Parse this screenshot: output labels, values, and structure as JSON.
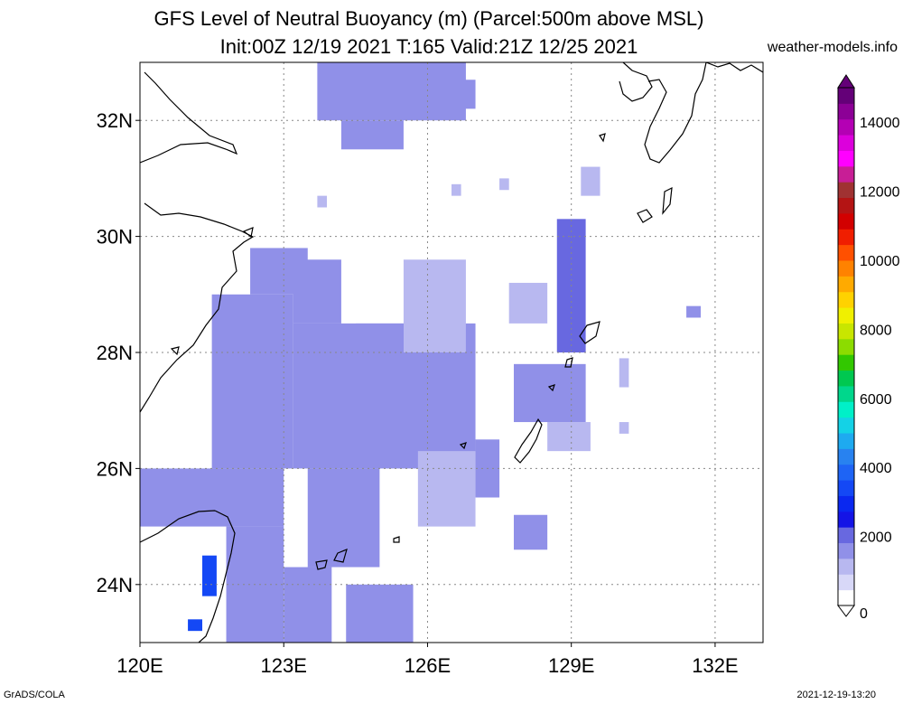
{
  "title_line1": "GFS Level of Neutral Buoyancy (m) (Parcel:500m above MSL)",
  "title_line2": "Init:00Z 12/19 2021 T:165 Valid:21Z 12/25 2021",
  "site": "weather-models.info",
  "footer_left": "GrADS/COLA",
  "footer_right": "2021-12-19-13:20",
  "map": {
    "lon_range": [
      120,
      133
    ],
    "lat_range": [
      23,
      33
    ],
    "lon_ticks": [
      {
        "value": 120,
        "label": "120E"
      },
      {
        "value": 123,
        "label": "123E"
      },
      {
        "value": 126,
        "label": "126E"
      },
      {
        "value": 129,
        "label": "129E"
      },
      {
        "value": 132,
        "label": "132E"
      }
    ],
    "lat_ticks": [
      {
        "value": 24,
        "label": "24N"
      },
      {
        "value": 26,
        "label": "26N"
      },
      {
        "value": 28,
        "label": "28N"
      },
      {
        "value": 30,
        "label": "30N"
      },
      {
        "value": 32,
        "label": "32N"
      }
    ],
    "grid_lines": true
  },
  "colorbar": {
    "min": 0,
    "max": 15000,
    "labels": [
      "0",
      "2000",
      "4000",
      "6000",
      "8000",
      "10000",
      "12000",
      "14000"
    ],
    "colors": [
      "#ffffff",
      "#d8d8f8",
      "#b8b8f0",
      "#9090e8",
      "#6868e0",
      "#1414e6",
      "#0a28f0",
      "#1448f5",
      "#1e64f5",
      "#2882f0",
      "#1eaaf0",
      "#14d2e6",
      "#00f0c8",
      "#00d78c",
      "#00c850",
      "#32c800",
      "#8cdc00",
      "#c8e600",
      "#f0f000",
      "#ffd200",
      "#ffaa00",
      "#ff8200",
      "#ff5000",
      "#f01e00",
      "#d20000",
      "#b41414",
      "#a03232",
      "#c81e96",
      "#ff00ff",
      "#dc00dc",
      "#b400b4",
      "#8c0096",
      "#640078"
    ]
  },
  "field": {
    "description_units": "m",
    "blocks": [
      {
        "lon": [
          123.7,
          126.8
        ],
        "lat": [
          32.0,
          33.0
        ],
        "value": 1800
      },
      {
        "lon": [
          124.2,
          125.5
        ],
        "lat": [
          31.5,
          32.0
        ],
        "value": 1700
      },
      {
        "lon": [
          126.5,
          127.0
        ],
        "lat": [
          32.2,
          32.7
        ],
        "value": 1600
      },
      {
        "lon": [
          120.0,
          123.0
        ],
        "lat": [
          25.0,
          26.0
        ],
        "value": 1500
      },
      {
        "lon": [
          121.5,
          123.2
        ],
        "lat": [
          26.0,
          29.0
        ],
        "value": 1600
      },
      {
        "lon": [
          122.3,
          123.5
        ],
        "lat": [
          29.0,
          29.8
        ],
        "value": 1500
      },
      {
        "lon": [
          123.2,
          127.0
        ],
        "lat": [
          26.0,
          28.5
        ],
        "value": 1500
      },
      {
        "lon": [
          123.2,
          124.2
        ],
        "lat": [
          28.5,
          29.6
        ],
        "value": 1600
      },
      {
        "lon": [
          125.5,
          126.8
        ],
        "lat": [
          28.0,
          29.6
        ],
        "value": 1300
      },
      {
        "lon": [
          124.5,
          125.5
        ],
        "lat": [
          27.8,
          28.5
        ],
        "value": 1400
      },
      {
        "lon": [
          123.5,
          125.0
        ],
        "lat": [
          24.3,
          26.0
        ],
        "value": 1500
      },
      {
        "lon": [
          125.8,
          127.0
        ],
        "lat": [
          25.0,
          26.3
        ],
        "value": 1300
      },
      {
        "lon": [
          127.0,
          127.5
        ],
        "lat": [
          25.5,
          26.5
        ],
        "value": 1400
      },
      {
        "lon": [
          121.8,
          123.0
        ],
        "lat": [
          23.0,
          25.0
        ],
        "value": 1600
      },
      {
        "lon": [
          123.0,
          124.0
        ],
        "lat": [
          23.0,
          24.3
        ],
        "value": 1500
      },
      {
        "lon": [
          124.3,
          125.7
        ],
        "lat": [
          23.0,
          24.0
        ],
        "value": 1400
      },
      {
        "lon": [
          127.8,
          129.3
        ],
        "lat": [
          26.8,
          27.8
        ],
        "value": 1800
      },
      {
        "lon": [
          128.5,
          129.4
        ],
        "lat": [
          26.3,
          26.8
        ],
        "value": 1300
      },
      {
        "lon": [
          128.7,
          129.3
        ],
        "lat": [
          28.0,
          30.3
        ],
        "value": 2200
      },
      {
        "lon": [
          127.7,
          128.5
        ],
        "lat": [
          28.5,
          29.2
        ],
        "value": 1300
      },
      {
        "lon": [
          127.8,
          128.5
        ],
        "lat": [
          24.6,
          25.2
        ],
        "value": 1400
      },
      {
        "lon": [
          121.3,
          121.6
        ],
        "lat": [
          23.8,
          24.5
        ],
        "value": 3600
      },
      {
        "lon": [
          121.0,
          121.3
        ],
        "lat": [
          23.2,
          23.4
        ],
        "value": 3200
      },
      {
        "lon": [
          131.4,
          131.7
        ],
        "lat": [
          28.6,
          28.8
        ],
        "value": 1400
      },
      {
        "lon": [
          130.0,
          130.2
        ],
        "lat": [
          27.4,
          27.9
        ],
        "value": 1300
      },
      {
        "lon": [
          130.0,
          130.2
        ],
        "lat": [
          26.6,
          26.8
        ],
        "value": 1300
      },
      {
        "lon": [
          127.5,
          127.7
        ],
        "lat": [
          30.8,
          31.0
        ],
        "value": 1300
      },
      {
        "lon": [
          126.5,
          126.7
        ],
        "lat": [
          30.7,
          30.9
        ],
        "value": 1300
      },
      {
        "lon": [
          129.2,
          129.6
        ],
        "lat": [
          30.7,
          31.2
        ],
        "value": 1300
      },
      {
        "lon": [
          123.7,
          123.9
        ],
        "lat": [
          30.5,
          30.7
        ],
        "value": 1300
      }
    ]
  }
}
